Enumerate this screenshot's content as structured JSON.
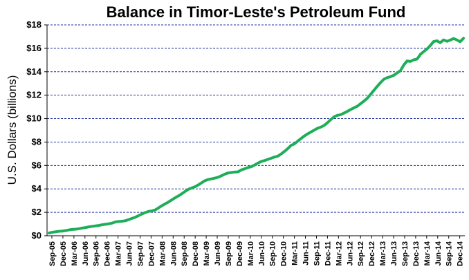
{
  "chart_data": {
    "type": "line",
    "title": "Balance in Timor-Leste's Petroleum Fund",
    "xlabel": "",
    "ylabel": "U.S. Dollars (billions)",
    "ylim": [
      0,
      18
    ],
    "yticks": [
      0,
      2,
      4,
      6,
      8,
      10,
      12,
      14,
      16,
      18
    ],
    "ytick_labels": [
      "$0",
      "$2",
      "$4",
      "$6",
      "$8",
      "$10",
      "$12",
      "$14",
      "$16",
      "$18"
    ],
    "x_tick_labels": [
      "Sep-05",
      "Dec-05",
      "Mar-06",
      "Jun-06",
      "Sep-06",
      "Dec-06",
      "Mar-07",
      "Jun-07",
      "Sep-07",
      "Dec-07",
      "Mar-08",
      "Jun-08",
      "Sep-08",
      "Dec-08",
      "Mar-09",
      "Jun-09",
      "Sep-09",
      "Dec-09",
      "Mar-10",
      "Jun-10",
      "Sep-10",
      "Dec-10",
      "Mar-11",
      "Jun-11",
      "Sep-11",
      "Dec-11",
      "Mar-12",
      "Jun-12",
      "Sep-12",
      "Dec-12",
      "Mar-13",
      "Jun-13",
      "Sep-13",
      "Dec-13",
      "Mar-14",
      "Jun-14",
      "Sep-14",
      "Dec-14"
    ],
    "grid": "horizontal dashed",
    "line_color": "#1fae58",
    "grid_color": "#1f2f9e",
    "series": [
      {
        "values": [
          0.24,
          0.3,
          0.34,
          0.38,
          0.4,
          0.44,
          0.5,
          0.54,
          0.56,
          0.6,
          0.66,
          0.7,
          0.76,
          0.8,
          0.84,
          0.88,
          0.94,
          0.98,
          1.02,
          1.08,
          1.18,
          1.22,
          1.24,
          1.28,
          1.38,
          1.48,
          1.58,
          1.72,
          1.86,
          1.98,
          2.08,
          2.12,
          2.2,
          2.38,
          2.56,
          2.72,
          2.88,
          3.06,
          3.24,
          3.4,
          3.58,
          3.78,
          3.96,
          4.08,
          4.18,
          4.34,
          4.52,
          4.7,
          4.8,
          4.86,
          4.92,
          5.0,
          5.12,
          5.26,
          5.36,
          5.4,
          5.44,
          5.46,
          5.62,
          5.72,
          5.82,
          5.9,
          6.04,
          6.2,
          6.34,
          6.42,
          6.52,
          6.62,
          6.72,
          6.8,
          6.98,
          7.2,
          7.44,
          7.72,
          7.84,
          8.08,
          8.3,
          8.52,
          8.7,
          8.86,
          9.02,
          9.18,
          9.28,
          9.42,
          9.66,
          9.92,
          10.16,
          10.28,
          10.34,
          10.48,
          10.62,
          10.78,
          10.92,
          11.06,
          11.28,
          11.5,
          11.74,
          12.08,
          12.42,
          12.76,
          13.08,
          13.36,
          13.5,
          13.58,
          13.7,
          13.9,
          14.1,
          14.58,
          14.92,
          14.88,
          15.02,
          15.08,
          15.48,
          15.72,
          15.94,
          16.24,
          16.58,
          16.64,
          16.48,
          16.72,
          16.6,
          16.7,
          16.84,
          16.72,
          16.56,
          16.86
        ]
      }
    ]
  }
}
